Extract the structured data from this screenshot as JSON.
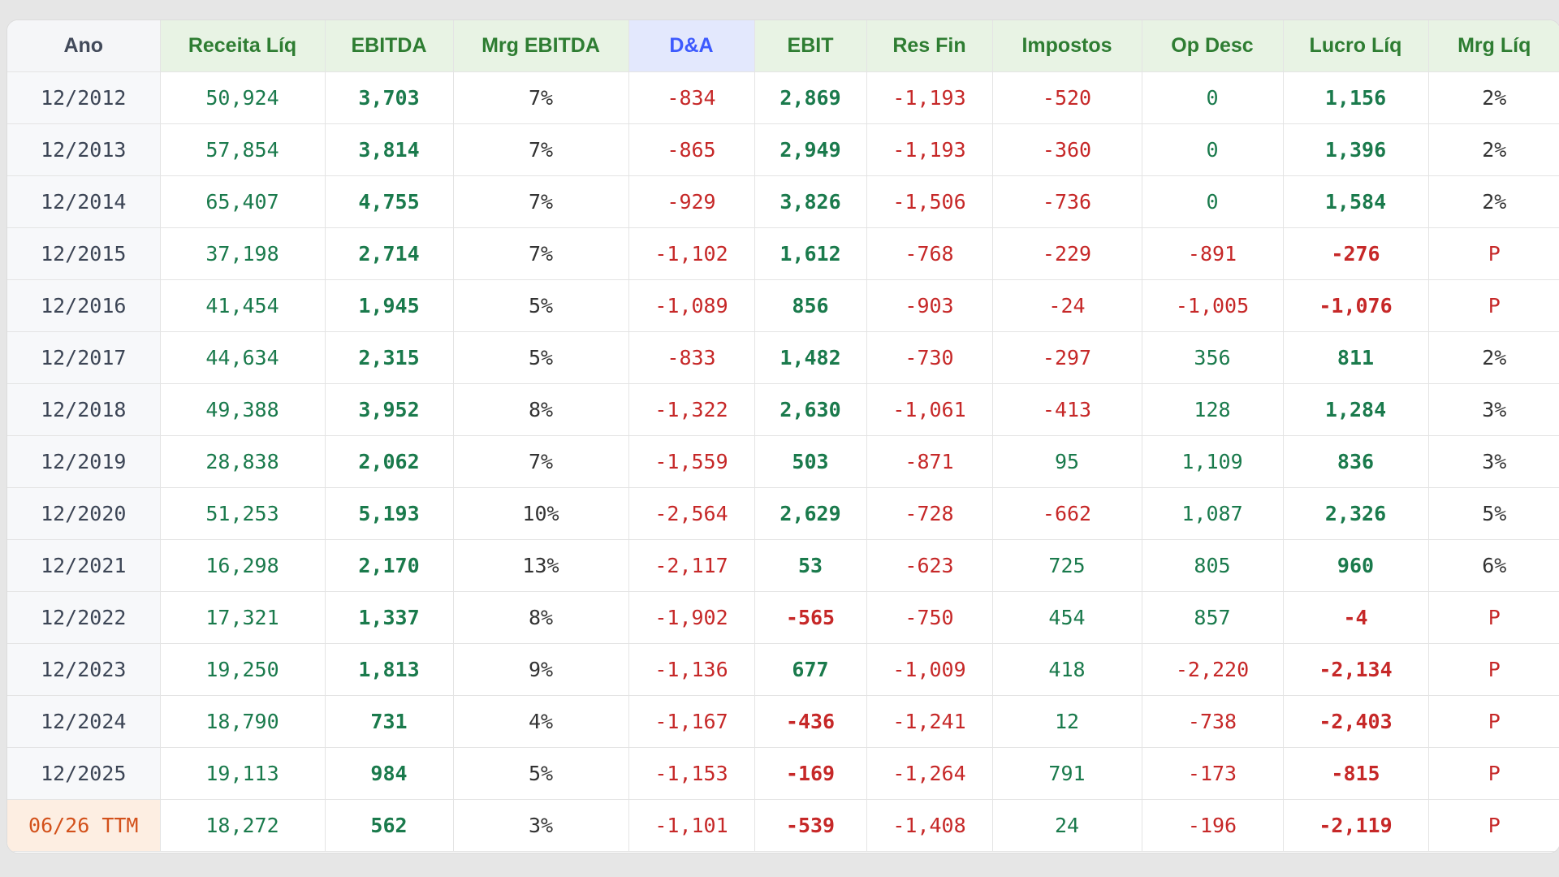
{
  "table": {
    "headers": [
      "Ano",
      "Receita Líq",
      "EBITDA",
      "Mrg EBITDA",
      "D&A",
      "EBIT",
      "Res Fin",
      "Impostos",
      "Op Desc",
      "Lucro Líq",
      "Mrg Líq"
    ],
    "rows": [
      {
        "ano": "12/2012",
        "receita": "50,924",
        "ebitda": "3,703",
        "mrg_ebitda": "7%",
        "da": "-834",
        "ebit": "2,869",
        "res_fin": "-1,193",
        "impostos": "-520",
        "op_desc": "0",
        "lucro": "1,156",
        "mrg_liq": "2%"
      },
      {
        "ano": "12/2013",
        "receita": "57,854",
        "ebitda": "3,814",
        "mrg_ebitda": "7%",
        "da": "-865",
        "ebit": "2,949",
        "res_fin": "-1,193",
        "impostos": "-360",
        "op_desc": "0",
        "lucro": "1,396",
        "mrg_liq": "2%"
      },
      {
        "ano": "12/2014",
        "receita": "65,407",
        "ebitda": "4,755",
        "mrg_ebitda": "7%",
        "da": "-929",
        "ebit": "3,826",
        "res_fin": "-1,506",
        "impostos": "-736",
        "op_desc": "0",
        "lucro": "1,584",
        "mrg_liq": "2%"
      },
      {
        "ano": "12/2015",
        "receita": "37,198",
        "ebitda": "2,714",
        "mrg_ebitda": "7%",
        "da": "-1,102",
        "ebit": "1,612",
        "res_fin": "-768",
        "impostos": "-229",
        "op_desc": "-891",
        "lucro": "-276",
        "mrg_liq": "P"
      },
      {
        "ano": "12/2016",
        "receita": "41,454",
        "ebitda": "1,945",
        "mrg_ebitda": "5%",
        "da": "-1,089",
        "ebit": "856",
        "res_fin": "-903",
        "impostos": "-24",
        "op_desc": "-1,005",
        "lucro": "-1,076",
        "mrg_liq": "P"
      },
      {
        "ano": "12/2017",
        "receita": "44,634",
        "ebitda": "2,315",
        "mrg_ebitda": "5%",
        "da": "-833",
        "ebit": "1,482",
        "res_fin": "-730",
        "impostos": "-297",
        "op_desc": "356",
        "lucro": "811",
        "mrg_liq": "2%"
      },
      {
        "ano": "12/2018",
        "receita": "49,388",
        "ebitda": "3,952",
        "mrg_ebitda": "8%",
        "da": "-1,322",
        "ebit": "2,630",
        "res_fin": "-1,061",
        "impostos": "-413",
        "op_desc": "128",
        "lucro": "1,284",
        "mrg_liq": "3%"
      },
      {
        "ano": "12/2019",
        "receita": "28,838",
        "ebitda": "2,062",
        "mrg_ebitda": "7%",
        "da": "-1,559",
        "ebit": "503",
        "res_fin": "-871",
        "impostos": "95",
        "op_desc": "1,109",
        "lucro": "836",
        "mrg_liq": "3%"
      },
      {
        "ano": "12/2020",
        "receita": "51,253",
        "ebitda": "5,193",
        "mrg_ebitda": "10%",
        "da": "-2,564",
        "ebit": "2,629",
        "res_fin": "-728",
        "impostos": "-662",
        "op_desc": "1,087",
        "lucro": "2,326",
        "mrg_liq": "5%"
      },
      {
        "ano": "12/2021",
        "receita": "16,298",
        "ebitda": "2,170",
        "mrg_ebitda": "13%",
        "da": "-2,117",
        "ebit": "53",
        "res_fin": "-623",
        "impostos": "725",
        "op_desc": "805",
        "lucro": "960",
        "mrg_liq": "6%"
      },
      {
        "ano": "12/2022",
        "receita": "17,321",
        "ebitda": "1,337",
        "mrg_ebitda": "8%",
        "da": "-1,902",
        "ebit": "-565",
        "res_fin": "-750",
        "impostos": "454",
        "op_desc": "857",
        "lucro": "-4",
        "mrg_liq": "P"
      },
      {
        "ano": "12/2023",
        "receita": "19,250",
        "ebitda": "1,813",
        "mrg_ebitda": "9%",
        "da": "-1,136",
        "ebit": "677",
        "res_fin": "-1,009",
        "impostos": "418",
        "op_desc": "-2,220",
        "lucro": "-2,134",
        "mrg_liq": "P"
      },
      {
        "ano": "12/2024",
        "receita": "18,790",
        "ebitda": "731",
        "mrg_ebitda": "4%",
        "da": "-1,167",
        "ebit": "-436",
        "res_fin": "-1,241",
        "impostos": "12",
        "op_desc": "-738",
        "lucro": "-2,403",
        "mrg_liq": "P"
      },
      {
        "ano": "12/2025",
        "receita": "19,113",
        "ebitda": "984",
        "mrg_ebitda": "5%",
        "da": "-1,153",
        "ebit": "-169",
        "res_fin": "-1,264",
        "impostos": "791",
        "op_desc": "-173",
        "lucro": "-815",
        "mrg_liq": "P"
      },
      {
        "ano": "06/26 TTM",
        "receita": "18,272",
        "ebitda": "562",
        "mrg_ebitda": "3%",
        "da": "-1,101",
        "ebit": "-539",
        "res_fin": "-1,408",
        "impostos": "24",
        "op_desc": "-196",
        "lucro": "-2,119",
        "mrg_liq": "P",
        "ttm": true
      }
    ]
  },
  "colors": {
    "positive": "#1a7a4c",
    "negative": "#c62828",
    "header_green": "#2e7d32",
    "header_blue": "#3d5afe",
    "ttm_orange": "#d3511b"
  }
}
